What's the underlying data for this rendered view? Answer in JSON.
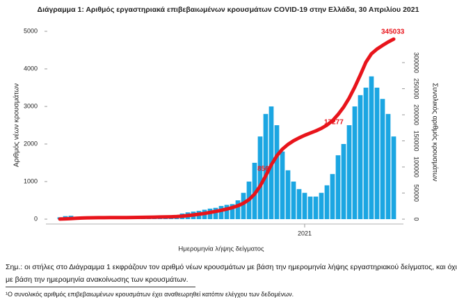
{
  "chart_data": {
    "type": "bar-line",
    "title": "Διάγραμμα 1: Αριθμός εργαστηριακά επιβεβαιωμένων κρουσμάτων COVID-19 στην Ελλάδα, 30 Απριλίου 2021",
    "y_label": "Αριθμός νέων κρουσμάτων",
    "y2_label": "Συνολικός αριθμός κρουσμάτων",
    "x_label": "Ημερομηνία λήψης δείγματος",
    "categories": [
      null,
      null,
      null,
      null,
      null,
      null,
      null,
      null,
      null,
      null,
      null,
      null,
      null,
      null,
      null,
      null,
      null,
      null,
      null,
      null,
      null,
      null,
      null,
      null,
      null,
      null,
      null,
      null,
      null,
      null,
      null,
      null,
      null,
      null,
      null,
      null,
      null,
      null,
      null,
      null,
      null,
      null,
      null,
      null,
      "2021",
      null,
      null,
      null,
      null,
      null,
      null,
      null,
      null,
      null,
      null,
      null,
      null,
      null,
      null,
      null,
      null
    ],
    "series": [
      {
        "color": "#1ba6e2",
        "axis": "y",
        "values": [
          50,
          80,
          90,
          60,
          40,
          20,
          15,
          10,
          10,
          10,
          10,
          10,
          15,
          20,
          25,
          30,
          40,
          50,
          30,
          40,
          60,
          100,
          150,
          180,
          200,
          220,
          250,
          280,
          300,
          350,
          380,
          400,
          500,
          700,
          1000,
          1500,
          2200,
          2800,
          3000,
          2500,
          1800,
          1300,
          1000,
          800,
          700,
          600,
          600,
          700,
          900,
          1200,
          1700,
          2000,
          2500,
          3000,
          3300,
          3500,
          3800,
          3500,
          3200,
          2800,
          2200
        ]
      },
      {
        "color": "#e8141b",
        "axis": "y2",
        "values": [
          100,
          500,
          1100,
          1700,
          2200,
          2500,
          2650,
          2750,
          2850,
          2900,
          2950,
          3000,
          3100,
          3200,
          3350,
          3500,
          3700,
          3900,
          4100,
          4300,
          4600,
          5000,
          5700,
          6800,
          8000,
          9500,
          11000,
          12800,
          14800,
          16900,
          19300,
          22100,
          25600,
          30500,
          37500,
          48000,
          63400,
          83000,
          104000,
          121500,
          134100,
          143200,
          150200,
          155800,
          160700,
          164900,
          169100,
          174000,
          180300,
          188700,
          200600,
          214600,
          232100,
          253100,
          276200,
          300700,
          317000,
          326000,
          333000,
          339500,
          345033
        ]
      }
    ],
    "ylim": [
      0,
      5000
    ],
    "yticks": [
      0,
      1000,
      2000,
      3000,
      4000,
      5000
    ],
    "y2lim": [
      0,
      360000
    ],
    "y2ticks": [
      0,
      50000,
      100000,
      150000,
      200000,
      250000,
      300000
    ],
    "annotations": [
      "345033",
      "17277",
      "856"
    ]
  },
  "notes": [
    "Σημ.: οι στήλες στο Διάγραμμα 1 εκφράζουν τον αριθμό νέων κρουσμάτων με βάση την ημερομηνία λήψης εργαστηριακού δείγματος, και όχι",
    "με βάση την ημερομηνία ανακοίνωσης των κρουσμάτων."
  ],
  "footnote": "¹Ο συνολικός αριθμός επιβεβαιωμένων κρουσμάτων έχει αναθεωρηθεί κατόπιν ελέγχου των δεδομένων."
}
